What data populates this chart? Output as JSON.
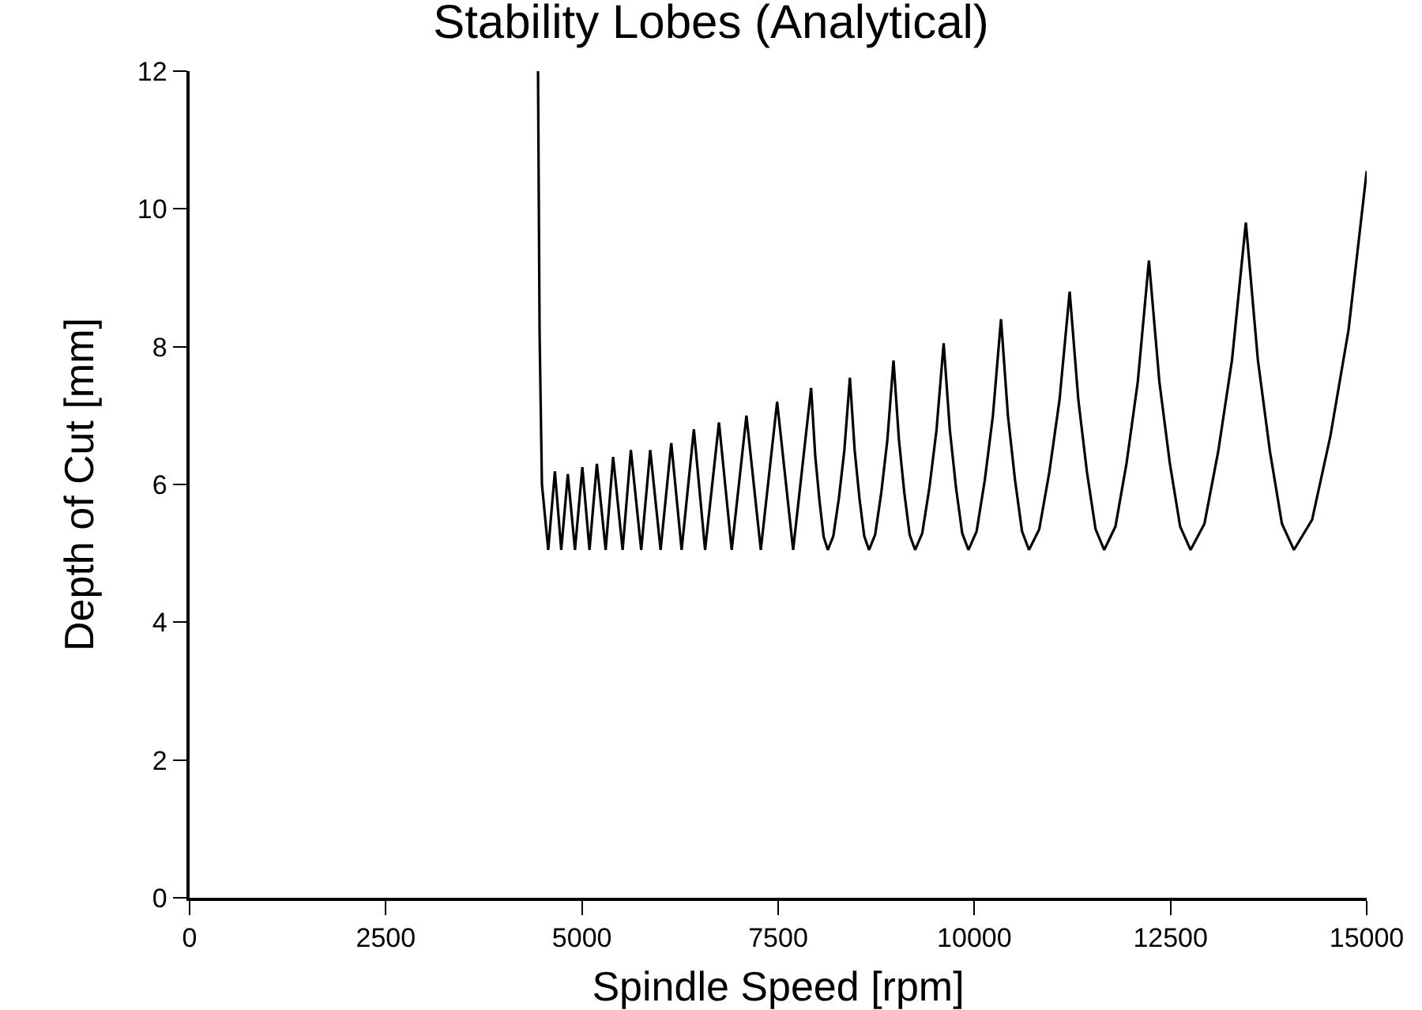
{
  "chart_data": {
    "type": "line",
    "title": "Stability Lobes (Analytical)",
    "xlabel": "Spindle Speed [rpm]",
    "ylabel": "Depth of Cut [mm]",
    "xlim": [
      0,
      15000
    ],
    "xticks": [
      0,
      2500,
      5000,
      7500,
      10000,
      12500,
      15000
    ],
    "ylim": [
      0,
      12
    ],
    "yticks": [
      0,
      2,
      4,
      6,
      8,
      10,
      12
    ],
    "marker": "none",
    "line_style": "solid",
    "series": [
      {
        "color": "#000000",
        "x": [
          4440,
          4460,
          4490,
          4570,
          4655,
          4736,
          4820,
          4911,
          5005,
          5096,
          5190,
          5302,
          5397,
          5518,
          5623,
          5755,
          5870,
          6002,
          6138,
          6270,
          6426,
          6569,
          6746,
          6908,
          7096,
          7279,
          7487,
          7691,
          7920,
          7973,
          8027,
          8080,
          8133,
          8203,
          8274,
          8344,
          8414,
          8475,
          8536,
          8597,
          8658,
          8736,
          8814,
          8892,
          8970,
          9039,
          9108,
          9176,
          9245,
          9336,
          9427,
          9518,
          9609,
          9688,
          9767,
          9846,
          9925,
          10029,
          10133,
          10236,
          10340,
          10429,
          10519,
          10608,
          10697,
          10827,
          10956,
          11086,
          11215,
          11325,
          11435,
          11545,
          11655,
          11798,
          11940,
          12083,
          12225,
          12358,
          12491,
          12623,
          12756,
          12932,
          13108,
          13284,
          13460,
          13613,
          13767,
          13920,
          14073,
          14305,
          14537,
          14768,
          15000
        ],
        "values": [
          12,
          8.2,
          6.0,
          5.05,
          6.19,
          5.05,
          6.15,
          5.05,
          6.25,
          5.05,
          6.3,
          5.05,
          6.4,
          5.05,
          6.5,
          5.05,
          6.5,
          5.05,
          6.6,
          5.05,
          6.8,
          5.05,
          6.9,
          5.05,
          7.0,
          5.05,
          7.2,
          5.05,
          7.4,
          6.41,
          5.76,
          5.24,
          5.05,
          5.25,
          5.8,
          6.5,
          7.55,
          6.5,
          5.8,
          5.25,
          5.05,
          5.27,
          5.88,
          6.65,
          7.8,
          6.65,
          5.88,
          5.27,
          5.05,
          5.29,
          5.95,
          6.79,
          8.05,
          6.79,
          5.95,
          5.29,
          5.05,
          5.32,
          6.06,
          6.99,
          8.4,
          6.99,
          6.06,
          5.32,
          5.05,
          5.35,
          6.18,
          7.23,
          8.8,
          7.23,
          6.18,
          5.35,
          5.05,
          5.39,
          6.31,
          7.49,
          9.25,
          7.49,
          6.31,
          5.39,
          5.05,
          5.43,
          6.48,
          7.81,
          9.8,
          7.81,
          6.48,
          5.43,
          5.05,
          5.49,
          6.7,
          8.24,
          10.55
        ]
      }
    ]
  }
}
